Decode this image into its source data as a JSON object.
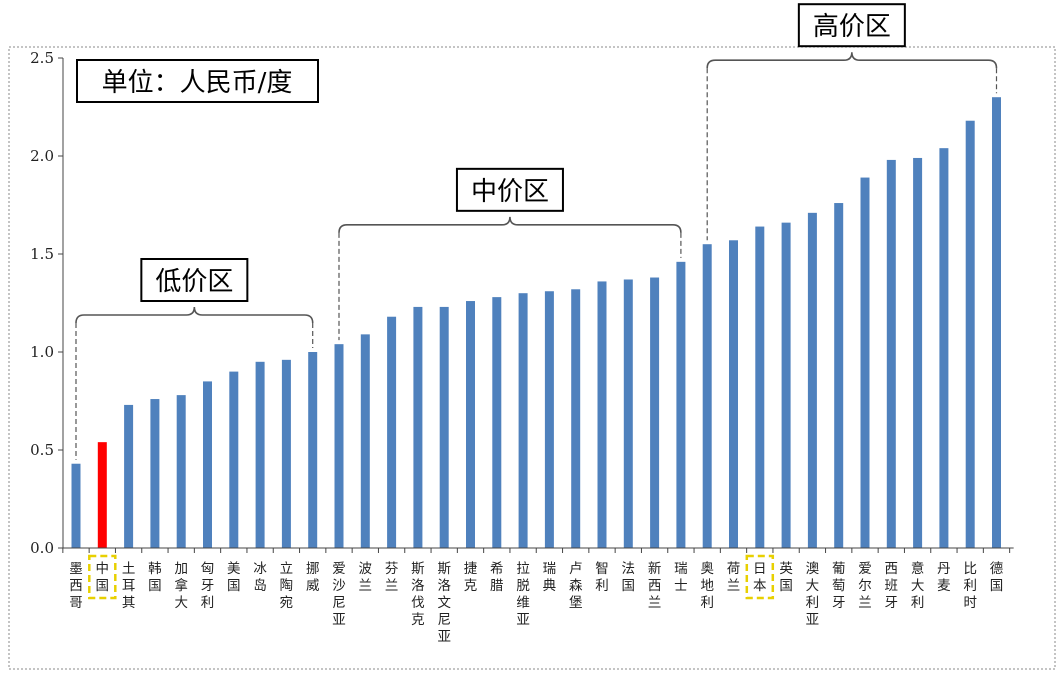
{
  "unit_label": "单位：人民币/度",
  "chart_data": {
    "type": "bar",
    "ylim": [
      0,
      2.5
    ],
    "yticks": [
      "0.0",
      "0.5",
      "1.0",
      "1.5",
      "2.0",
      "2.5"
    ],
    "grid": false,
    "categories": [
      "墨西哥",
      "中国",
      "土耳其",
      "韩国",
      "加拿大",
      "匈牙利",
      "美国",
      "冰岛",
      "立陶宛",
      "挪威",
      "爱沙尼亚",
      "波兰",
      "芬兰",
      "斯洛伐克",
      "斯洛文尼亚",
      "捷克",
      "希腊",
      "拉脱维亚",
      "瑞典",
      "卢森堡",
      "智利",
      "法国",
      "新西兰",
      "瑞士",
      "奥地利",
      "荷兰",
      "日本",
      "英国",
      "澳大利亚",
      "葡萄牙",
      "爱尔兰",
      "西班牙",
      "意大利",
      "丹麦",
      "比利时",
      "德国"
    ],
    "values": [
      0.43,
      0.54,
      0.73,
      0.76,
      0.78,
      0.85,
      0.9,
      0.95,
      0.96,
      1.0,
      1.04,
      1.09,
      1.18,
      1.23,
      1.23,
      1.26,
      1.28,
      1.3,
      1.31,
      1.32,
      1.36,
      1.37,
      1.38,
      1.46,
      1.55,
      1.57,
      1.64,
      1.66,
      1.71,
      1.76,
      1.89,
      1.98,
      1.99,
      2.04,
      2.18,
      2.3
    ],
    "bar_color": "#4f81bd",
    "highlight_color": "#ff0000",
    "highlight_index": 1,
    "boxed_label_indices": [
      1,
      26
    ],
    "groups": [
      {
        "label": "低价区",
        "start_index": 0,
        "end_index": 9
      },
      {
        "label": "中价区",
        "start_index": 10,
        "end_index": 23
      },
      {
        "label": "高价区",
        "start_index": 24,
        "end_index": 35
      }
    ]
  }
}
